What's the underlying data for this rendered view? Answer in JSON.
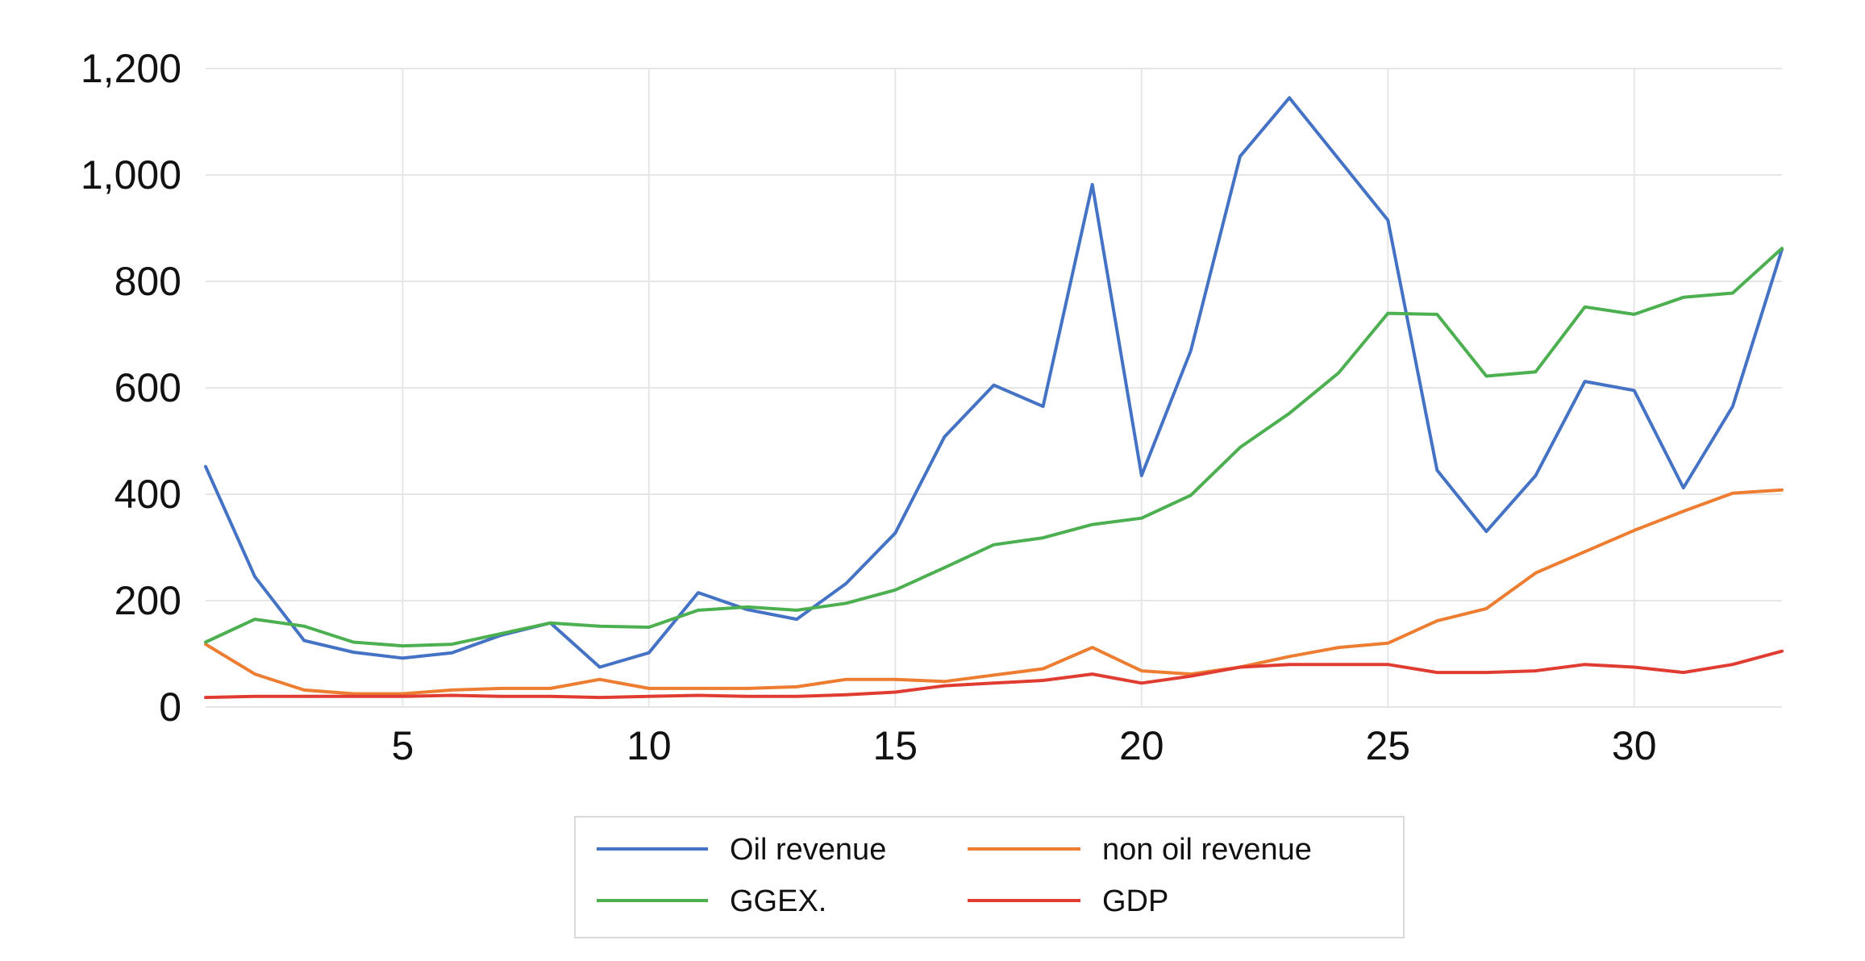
{
  "chart_data": {
    "type": "line",
    "title": "",
    "xlabel": "",
    "ylabel": "",
    "x": [
      1,
      2,
      3,
      4,
      5,
      6,
      7,
      8,
      9,
      10,
      11,
      12,
      13,
      14,
      15,
      16,
      17,
      18,
      19,
      20,
      21,
      22,
      23,
      24,
      25,
      26,
      27,
      28,
      29,
      30,
      31,
      32,
      33
    ],
    "xlim": [
      1,
      33
    ],
    "ylim": [
      0,
      1200
    ],
    "x_ticks": [
      5,
      10,
      15,
      20,
      25,
      30
    ],
    "y_ticks": [
      0,
      200,
      400,
      600,
      800,
      1000,
      1200
    ],
    "x_tick_labels": [
      "5",
      "10",
      "15",
      "20",
      "25",
      "30"
    ],
    "y_tick_labels": [
      "0",
      "200",
      "400",
      "600",
      "800",
      "1,000",
      "1,200"
    ],
    "grid": true,
    "legend_position": "bottom-center",
    "series": [
      {
        "name": "Oil revenue",
        "color": "#4472C4",
        "values": [
          452,
          245,
          125,
          103,
          92,
          102,
          135,
          158,
          75,
          102,
          215,
          183,
          165,
          232,
          327,
          508,
          605,
          565,
          982,
          435,
          670,
          1035,
          1145,
          1030,
          915,
          445,
          330,
          435,
          612,
          595,
          412,
          565,
          860
        ]
      },
      {
        "name": "non oil revenue",
        "color": "#ED7D31",
        "values": [
          118,
          62,
          32,
          25,
          25,
          32,
          35,
          35,
          52,
          35,
          35,
          35,
          38,
          52,
          52,
          48,
          60,
          72,
          112,
          68,
          62,
          75,
          95,
          112,
          120,
          162,
          185,
          252,
          292,
          332,
          368,
          402,
          408
        ]
      },
      {
        "name": "GGEX.",
        "color": "#4CAF50",
        "values": [
          122,
          165,
          152,
          122,
          115,
          118,
          138,
          158,
          152,
          150,
          182,
          188,
          182,
          195,
          220,
          262,
          305,
          318,
          343,
          355,
          398,
          488,
          552,
          628,
          740,
          738,
          622,
          630,
          752,
          738,
          770,
          778,
          862
        ]
      },
      {
        "name": "GDP",
        "color": "#E03C31",
        "values": [
          18,
          20,
          20,
          20,
          20,
          22,
          20,
          20,
          18,
          20,
          22,
          20,
          20,
          23,
          28,
          40,
          45,
          50,
          62,
          45,
          58,
          75,
          80,
          80,
          80,
          65,
          65,
          68,
          80,
          75,
          65,
          80,
          105
        ]
      }
    ]
  }
}
